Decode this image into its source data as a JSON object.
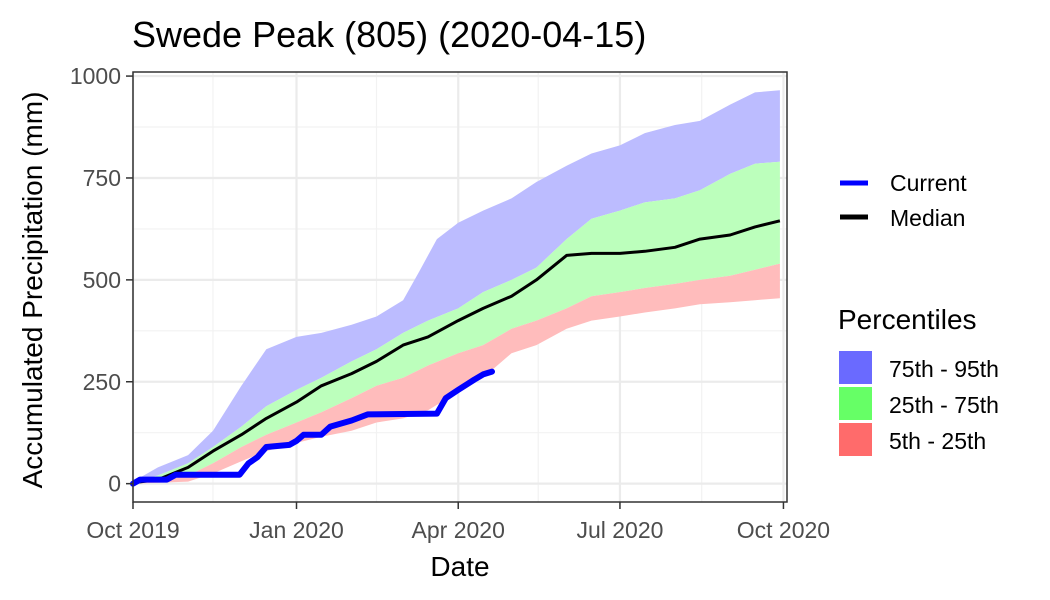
{
  "chart_data": {
    "type": "area",
    "title": "Swede Peak (805) (2020-04-15)",
    "xlabel": "Date",
    "ylabel": "Accumulated Precipitation (mm)",
    "xlim": [
      "2019-10-01",
      "2020-10-03"
    ],
    "ylim": [
      -45,
      1010
    ],
    "x_ticks": [
      {
        "date": "2019-10-01",
        "label": "Oct 2019"
      },
      {
        "date": "2020-01-01",
        "label": "Jan 2020"
      },
      {
        "date": "2020-04-01",
        "label": "Apr 2020"
      },
      {
        "date": "2020-07-01",
        "label": "Jul 2020"
      },
      {
        "date": "2020-10-01",
        "label": "Oct 2020"
      }
    ],
    "x_minor": [
      "2019-11-15",
      "2020-02-15",
      "2020-05-16",
      "2020-08-16"
    ],
    "y_ticks": [
      0,
      250,
      500,
      750,
      1000
    ],
    "y_minor": [
      125,
      375,
      625,
      875
    ],
    "grid": true,
    "legend_position": "right",
    "lines_legend": [
      {
        "name": "Current",
        "color": "#0000ff"
      },
      {
        "name": "Median",
        "color": "#000000"
      }
    ],
    "percentile_legend": {
      "title": "Percentiles",
      "items": [
        {
          "name": "75th - 95th",
          "color": "#6a6aff"
        },
        {
          "name": "25th - 75th",
          "color": "#66ff66"
        },
        {
          "name": "5th - 25th",
          "color": "#ff6b6b"
        }
      ]
    },
    "band_fill_colors": {
      "p75_95": "#bcbcff",
      "p25_75": "#bcffbc",
      "p5_25": "#ffbcbc"
    },
    "series": [
      {
        "name": "95th",
        "points": [
          [
            "2019-10-01",
            5
          ],
          [
            "2019-10-15",
            40
          ],
          [
            "2019-11-01",
            70
          ],
          [
            "2019-11-15",
            130
          ],
          [
            "2019-12-01",
            240
          ],
          [
            "2019-12-15",
            330
          ],
          [
            "2020-01-01",
            360
          ],
          [
            "2020-01-15",
            370
          ],
          [
            "2020-02-01",
            390
          ],
          [
            "2020-02-15",
            410
          ],
          [
            "2020-03-01",
            450
          ],
          [
            "2020-03-10",
            520
          ],
          [
            "2020-03-20",
            600
          ],
          [
            "2020-04-01",
            640
          ],
          [
            "2020-04-15",
            670
          ],
          [
            "2020-05-01",
            700
          ],
          [
            "2020-05-15",
            740
          ],
          [
            "2020-06-01",
            780
          ],
          [
            "2020-06-15",
            810
          ],
          [
            "2020-07-01",
            830
          ],
          [
            "2020-07-15",
            860
          ],
          [
            "2020-08-01",
            880
          ],
          [
            "2020-08-15",
            890
          ],
          [
            "2020-09-01",
            930
          ],
          [
            "2020-09-15",
            960
          ],
          [
            "2020-09-29",
            965
          ]
        ]
      },
      {
        "name": "75th",
        "points": [
          [
            "2019-10-01",
            3
          ],
          [
            "2019-10-15",
            20
          ],
          [
            "2019-11-01",
            50
          ],
          [
            "2019-11-15",
            90
          ],
          [
            "2019-12-01",
            140
          ],
          [
            "2019-12-15",
            190
          ],
          [
            "2020-01-01",
            230
          ],
          [
            "2020-01-15",
            260
          ],
          [
            "2020-02-01",
            300
          ],
          [
            "2020-02-15",
            330
          ],
          [
            "2020-03-01",
            370
          ],
          [
            "2020-03-15",
            400
          ],
          [
            "2020-04-01",
            430
          ],
          [
            "2020-04-15",
            470
          ],
          [
            "2020-05-01",
            500
          ],
          [
            "2020-05-15",
            530
          ],
          [
            "2020-06-01",
            600
          ],
          [
            "2020-06-15",
            650
          ],
          [
            "2020-07-01",
            670
          ],
          [
            "2020-07-15",
            690
          ],
          [
            "2020-08-01",
            700
          ],
          [
            "2020-08-15",
            720
          ],
          [
            "2020-09-01",
            760
          ],
          [
            "2020-09-15",
            785
          ],
          [
            "2020-09-29",
            790
          ]
        ]
      },
      {
        "name": "Median",
        "points": [
          [
            "2019-10-01",
            2
          ],
          [
            "2019-10-15",
            10
          ],
          [
            "2019-11-01",
            40
          ],
          [
            "2019-11-15",
            80
          ],
          [
            "2019-12-01",
            120
          ],
          [
            "2019-12-15",
            160
          ],
          [
            "2020-01-01",
            200
          ],
          [
            "2020-01-15",
            240
          ],
          [
            "2020-02-01",
            270
          ],
          [
            "2020-02-15",
            300
          ],
          [
            "2020-03-01",
            340
          ],
          [
            "2020-03-15",
            360
          ],
          [
            "2020-04-01",
            400
          ],
          [
            "2020-04-15",
            430
          ],
          [
            "2020-05-01",
            460
          ],
          [
            "2020-05-15",
            500
          ],
          [
            "2020-06-01",
            560
          ],
          [
            "2020-06-15",
            565
          ],
          [
            "2020-07-01",
            565
          ],
          [
            "2020-07-15",
            570
          ],
          [
            "2020-08-01",
            580
          ],
          [
            "2020-08-15",
            600
          ],
          [
            "2020-09-01",
            610
          ],
          [
            "2020-09-15",
            630
          ],
          [
            "2020-09-29",
            645
          ]
        ]
      },
      {
        "name": "25th",
        "points": [
          [
            "2019-10-01",
            0
          ],
          [
            "2019-10-15",
            5
          ],
          [
            "2019-11-01",
            20
          ],
          [
            "2019-11-15",
            50
          ],
          [
            "2019-12-01",
            90
          ],
          [
            "2019-12-15",
            120
          ],
          [
            "2020-01-01",
            150
          ],
          [
            "2020-01-15",
            175
          ],
          [
            "2020-02-01",
            210
          ],
          [
            "2020-02-15",
            240
          ],
          [
            "2020-03-01",
            260
          ],
          [
            "2020-03-15",
            290
          ],
          [
            "2020-04-01",
            320
          ],
          [
            "2020-04-15",
            340
          ],
          [
            "2020-05-01",
            380
          ],
          [
            "2020-05-15",
            400
          ],
          [
            "2020-06-01",
            430
          ],
          [
            "2020-06-15",
            460
          ],
          [
            "2020-07-01",
            470
          ],
          [
            "2020-07-15",
            480
          ],
          [
            "2020-08-01",
            490
          ],
          [
            "2020-08-15",
            500
          ],
          [
            "2020-09-01",
            510
          ],
          [
            "2020-09-15",
            525
          ],
          [
            "2020-09-29",
            540
          ]
        ]
      },
      {
        "name": "5th",
        "points": [
          [
            "2019-10-01",
            0
          ],
          [
            "2019-10-15",
            2
          ],
          [
            "2019-11-01",
            5
          ],
          [
            "2019-11-15",
            25
          ],
          [
            "2019-12-01",
            55
          ],
          [
            "2019-12-15",
            80
          ],
          [
            "2020-01-01",
            100
          ],
          [
            "2020-01-15",
            115
          ],
          [
            "2020-02-01",
            130
          ],
          [
            "2020-02-15",
            150
          ],
          [
            "2020-03-01",
            160
          ],
          [
            "2020-03-15",
            180
          ],
          [
            "2020-04-01",
            225
          ],
          [
            "2020-04-15",
            260
          ],
          [
            "2020-05-01",
            320
          ],
          [
            "2020-05-15",
            340
          ],
          [
            "2020-06-01",
            380
          ],
          [
            "2020-06-15",
            400
          ],
          [
            "2020-07-01",
            410
          ],
          [
            "2020-07-15",
            420
          ],
          [
            "2020-08-01",
            430
          ],
          [
            "2020-08-15",
            440
          ],
          [
            "2020-09-01",
            445
          ],
          [
            "2020-09-15",
            450
          ],
          [
            "2020-09-29",
            455
          ]
        ]
      },
      {
        "name": "Current",
        "points": [
          [
            "2019-10-01",
            0
          ],
          [
            "2019-10-05",
            10
          ],
          [
            "2019-10-20",
            10
          ],
          [
            "2019-10-25",
            22
          ],
          [
            "2019-11-30",
            22
          ],
          [
            "2019-12-05",
            50
          ],
          [
            "2019-12-10",
            65
          ],
          [
            "2019-12-15",
            90
          ],
          [
            "2019-12-28",
            95
          ],
          [
            "2020-01-01",
            105
          ],
          [
            "2020-01-05",
            120
          ],
          [
            "2020-01-15",
            120
          ],
          [
            "2020-01-20",
            140
          ],
          [
            "2020-02-01",
            155
          ],
          [
            "2020-02-10",
            170
          ],
          [
            "2020-03-20",
            172
          ],
          [
            "2020-03-25",
            210
          ],
          [
            "2020-04-01",
            230
          ],
          [
            "2020-04-10",
            255
          ],
          [
            "2020-04-15",
            268
          ],
          [
            "2020-04-20",
            275
          ]
        ]
      }
    ]
  }
}
